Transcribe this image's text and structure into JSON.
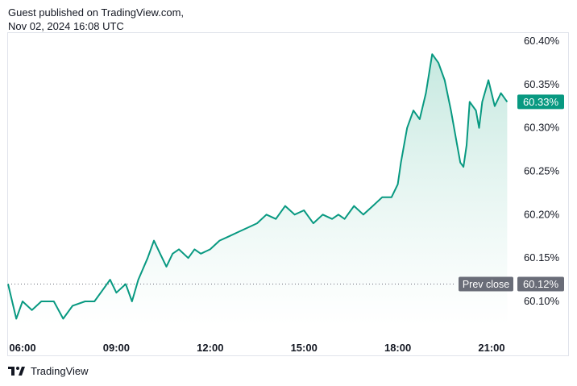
{
  "header": {
    "line1": "Guest published on TradingView.com,",
    "line2": "Nov 02, 2024 16:08 UTC"
  },
  "footer": {
    "brand": "TradingView"
  },
  "colors": {
    "line": "#089981",
    "fill_top": "#bfe6dc",
    "fill_bottom": "#ffffff",
    "prev_close_bg": "#6a6d78",
    "last_bg": "#089981"
  },
  "chart_data": {
    "type": "area",
    "title": "",
    "xlabel": "",
    "ylabel": "",
    "x_ticks": [
      "06:00",
      "09:00",
      "12:00",
      "15:00",
      "18:00",
      "21:00"
    ],
    "y_ticks": [
      "60.40%",
      "60.35%",
      "60.30%",
      "60.25%",
      "60.20%",
      "60.15%",
      "60.10%"
    ],
    "ylim": [
      60.065,
      60.41
    ],
    "x_unit": "hour",
    "series": [
      {
        "x": [
          5.5,
          5.8,
          6.0,
          6.3,
          6.6,
          7.0,
          7.3,
          7.6,
          8.0,
          8.3,
          8.6,
          8.8,
          9.0,
          9.3,
          9.5,
          9.7,
          10.0,
          10.2,
          10.4,
          10.6,
          10.8,
          11.0,
          11.3,
          11.5,
          11.7,
          12.0,
          12.3,
          12.6,
          12.9,
          13.2,
          13.5,
          13.8,
          14.1,
          14.4,
          14.7,
          15.0,
          15.3,
          15.6,
          15.9,
          16.1,
          16.3,
          16.6,
          16.9,
          17.2,
          17.5,
          17.8,
          18.0,
          18.1,
          18.3,
          18.5,
          18.7,
          18.9,
          19.1,
          19.3,
          19.5,
          19.7,
          19.9,
          20.0,
          20.1,
          20.2,
          20.3,
          20.5,
          20.6,
          20.7,
          20.9,
          21.1,
          21.3,
          21.5
        ],
        "values": [
          60.12,
          60.08,
          60.1,
          60.09,
          60.1,
          60.1,
          60.08,
          60.095,
          60.1,
          60.1,
          60.115,
          60.125,
          60.11,
          60.12,
          60.1,
          60.125,
          60.15,
          60.17,
          60.155,
          60.14,
          60.155,
          60.16,
          60.15,
          60.16,
          60.155,
          60.16,
          60.17,
          60.175,
          60.18,
          60.185,
          60.19,
          60.2,
          60.195,
          60.21,
          60.2,
          60.205,
          60.19,
          60.2,
          60.195,
          60.2,
          60.195,
          60.21,
          60.2,
          60.21,
          60.22,
          60.22,
          60.235,
          60.26,
          60.3,
          60.32,
          60.31,
          60.34,
          60.385,
          60.375,
          60.355,
          60.32,
          60.28,
          60.26,
          60.255,
          60.28,
          60.33,
          60.32,
          60.3,
          60.33,
          60.355,
          60.325,
          60.34,
          60.33
        ]
      }
    ],
    "last_value": 60.33,
    "last_label": "60.33%",
    "prev_close": 60.12,
    "prev_close_label": "Prev close",
    "prev_close_value_label": "60.12%",
    "grid": false
  }
}
